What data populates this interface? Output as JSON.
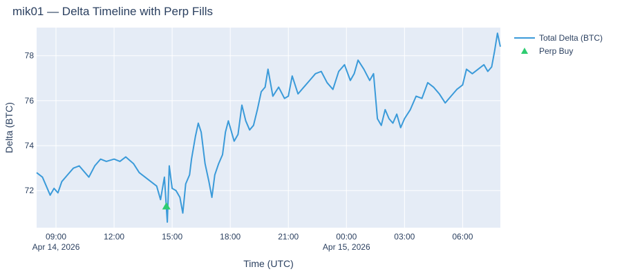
{
  "chart_data": {
    "type": "line",
    "title": "mik01 — Delta Timeline with Perp Fills",
    "xlabel": "Time (UTC)",
    "ylabel": "Delta (BTC)",
    "x_range_hours": [
      8.0,
      31.95
    ],
    "ylim": [
      70.35,
      79.25
    ],
    "x_ticks": [
      {
        "label": "09:00",
        "sublabel": "Apr 14, 2026",
        "h": 9
      },
      {
        "label": "12:00",
        "sublabel": "",
        "h": 12
      },
      {
        "label": "15:00",
        "sublabel": "",
        "h": 15
      },
      {
        "label": "18:00",
        "sublabel": "",
        "h": 18
      },
      {
        "label": "21:00",
        "sublabel": "",
        "h": 21
      },
      {
        "label": "00:00",
        "sublabel": "Apr 15, 2026",
        "h": 24
      },
      {
        "label": "03:00",
        "sublabel": "",
        "h": 27
      },
      {
        "label": "06:00",
        "sublabel": "",
        "h": 30
      }
    ],
    "y_ticks": [
      72,
      74,
      76,
      78
    ],
    "grid": true,
    "legend_placement": "top-right, outside plot",
    "series": [
      {
        "name": "Total Delta (BTC)",
        "kind": "line",
        "color": "#3a9ad9",
        "points": [
          [
            8.0,
            72.8
          ],
          [
            8.3,
            72.6
          ],
          [
            8.5,
            72.2
          ],
          [
            8.7,
            71.8
          ],
          [
            8.9,
            72.1
          ],
          [
            9.1,
            71.9
          ],
          [
            9.3,
            72.4
          ],
          [
            9.6,
            72.7
          ],
          [
            9.9,
            73.0
          ],
          [
            10.2,
            73.1
          ],
          [
            10.5,
            72.8
          ],
          [
            10.7,
            72.6
          ],
          [
            11.0,
            73.1
          ],
          [
            11.3,
            73.4
          ],
          [
            11.6,
            73.3
          ],
          [
            12.0,
            73.4
          ],
          [
            12.3,
            73.3
          ],
          [
            12.6,
            73.5
          ],
          [
            13.0,
            73.2
          ],
          [
            13.3,
            72.8
          ],
          [
            13.6,
            72.6
          ],
          [
            13.9,
            72.4
          ],
          [
            14.2,
            72.2
          ],
          [
            14.4,
            71.6
          ],
          [
            14.6,
            72.6
          ],
          [
            14.75,
            70.6
          ],
          [
            14.85,
            73.1
          ],
          [
            15.0,
            72.1
          ],
          [
            15.2,
            72.0
          ],
          [
            15.4,
            71.7
          ],
          [
            15.55,
            71.0
          ],
          [
            15.7,
            72.3
          ],
          [
            15.9,
            72.7
          ],
          [
            16.0,
            73.4
          ],
          [
            16.2,
            74.4
          ],
          [
            16.35,
            75.0
          ],
          [
            16.5,
            74.6
          ],
          [
            16.7,
            73.2
          ],
          [
            16.9,
            72.4
          ],
          [
            17.05,
            71.7
          ],
          [
            17.2,
            72.7
          ],
          [
            17.4,
            73.2
          ],
          [
            17.6,
            73.6
          ],
          [
            17.75,
            74.6
          ],
          [
            17.9,
            75.1
          ],
          [
            18.0,
            74.8
          ],
          [
            18.2,
            74.2
          ],
          [
            18.4,
            74.5
          ],
          [
            18.6,
            75.8
          ],
          [
            18.8,
            75.1
          ],
          [
            19.0,
            74.7
          ],
          [
            19.2,
            74.9
          ],
          [
            19.4,
            75.6
          ],
          [
            19.6,
            76.4
          ],
          [
            19.8,
            76.6
          ],
          [
            19.95,
            77.4
          ],
          [
            20.2,
            76.2
          ],
          [
            20.5,
            76.6
          ],
          [
            20.8,
            76.1
          ],
          [
            21.0,
            76.2
          ],
          [
            21.2,
            77.1
          ],
          [
            21.5,
            76.3
          ],
          [
            21.8,
            76.6
          ],
          [
            22.1,
            76.9
          ],
          [
            22.4,
            77.2
          ],
          [
            22.7,
            77.3
          ],
          [
            23.0,
            76.8
          ],
          [
            23.3,
            76.5
          ],
          [
            23.6,
            77.3
          ],
          [
            23.9,
            77.6
          ],
          [
            24.2,
            76.9
          ],
          [
            24.4,
            77.2
          ],
          [
            24.6,
            77.8
          ],
          [
            24.9,
            77.4
          ],
          [
            25.2,
            76.9
          ],
          [
            25.4,
            77.2
          ],
          [
            25.6,
            75.2
          ],
          [
            25.8,
            74.9
          ],
          [
            26.0,
            75.6
          ],
          [
            26.2,
            75.2
          ],
          [
            26.4,
            75.0
          ],
          [
            26.6,
            75.4
          ],
          [
            26.8,
            74.8
          ],
          [
            27.0,
            75.2
          ],
          [
            27.3,
            75.6
          ],
          [
            27.6,
            76.2
          ],
          [
            27.9,
            76.1
          ],
          [
            28.2,
            76.8
          ],
          [
            28.5,
            76.6
          ],
          [
            28.8,
            76.3
          ],
          [
            29.1,
            75.9
          ],
          [
            29.4,
            76.2
          ],
          [
            29.7,
            76.5
          ],
          [
            30.0,
            76.7
          ],
          [
            30.2,
            77.4
          ],
          [
            30.5,
            77.2
          ],
          [
            30.8,
            77.4
          ],
          [
            31.1,
            77.6
          ],
          [
            31.3,
            77.3
          ],
          [
            31.5,
            77.5
          ],
          [
            31.65,
            78.2
          ],
          [
            31.8,
            79.0
          ],
          [
            31.95,
            78.4
          ]
        ]
      },
      {
        "name": "Perp Buy",
        "kind": "marker",
        "marker": "triangle-up",
        "color": "#2ecc71",
        "points": [
          [
            14.7,
            71.3
          ]
        ]
      }
    ]
  }
}
